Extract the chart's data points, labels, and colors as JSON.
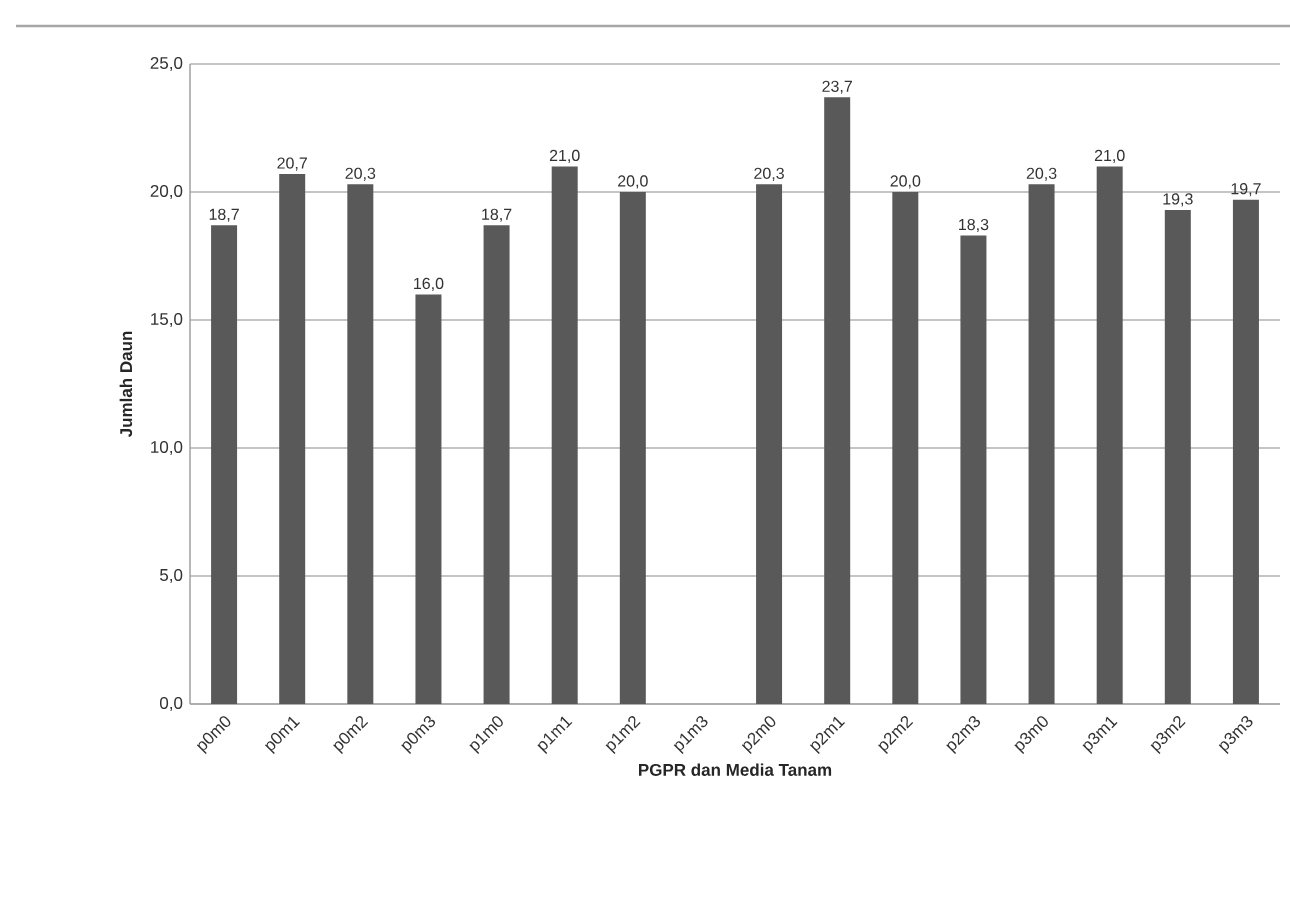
{
  "chart_data": {
    "type": "bar",
    "xlabel": "PGPR dan Media Tanam",
    "ylabel": "Jumlah Daun",
    "categories": [
      "p0m0",
      "p0m1",
      "p0m2",
      "p0m3",
      "p1m0",
      "p1m1",
      "p1m2",
      "p1m3",
      "p2m0",
      "p2m1",
      "p2m2",
      "p2m3",
      "p3m0",
      "p3m1",
      "p3m2",
      "p3m3"
    ],
    "values": [
      18.7,
      20.7,
      20.3,
      16.0,
      18.7,
      21.0,
      20.0,
      null,
      20.3,
      23.7,
      20.0,
      18.3,
      20.3,
      21.0,
      19.3,
      19.7
    ],
    "value_labels": [
      "18,7",
      "20,7",
      "20,3",
      "16,0",
      "18,7",
      "21,0",
      "20,0",
      null,
      "20,3",
      "23,7",
      "20,0",
      "18,3",
      "20,3",
      "21,0",
      "19,3",
      "19,7"
    ],
    "color": "#595959",
    "ylim": [
      0,
      25
    ],
    "yticks": [
      {
        "value": 0,
        "label": "0,0"
      },
      {
        "value": 5,
        "label": "5,0"
      },
      {
        "value": 10,
        "label": "10,0"
      },
      {
        "value": 15,
        "label": "15,0"
      },
      {
        "value": 20,
        "label": "20,0"
      },
      {
        "value": 25,
        "label": "25,0"
      }
    ],
    "grid": "y"
  }
}
